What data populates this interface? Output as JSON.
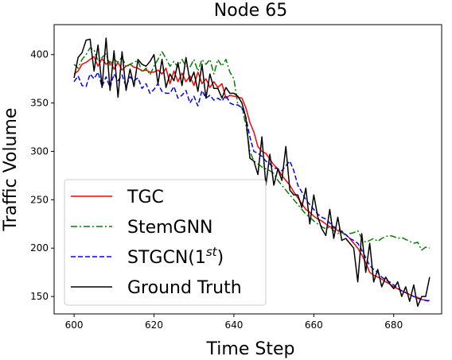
{
  "chart_data": {
    "type": "line",
    "title": "Node 65",
    "xlabel": "Time Step",
    "ylabel": "Traffic Volume",
    "xlim": [
      595,
      692
    ],
    "ylim": [
      132,
      431
    ],
    "xticks": [
      600,
      620,
      640,
      660,
      680
    ],
    "yticks": [
      150,
      200,
      250,
      300,
      350,
      400
    ],
    "legend_position": "lower-left",
    "grid": false,
    "x": [
      600,
      601,
      602,
      603,
      604,
      605,
      606,
      607,
      608,
      609,
      610,
      611,
      612,
      613,
      614,
      615,
      616,
      617,
      618,
      619,
      620,
      621,
      622,
      623,
      624,
      625,
      626,
      627,
      628,
      629,
      630,
      631,
      632,
      633,
      634,
      635,
      636,
      637,
      638,
      639,
      640,
      641,
      642,
      643,
      644,
      645,
      646,
      647,
      648,
      649,
      650,
      651,
      652,
      653,
      654,
      655,
      656,
      657,
      658,
      659,
      660,
      661,
      662,
      663,
      664,
      665,
      666,
      667,
      668,
      669,
      670,
      671,
      672,
      673,
      674,
      675,
      676,
      677,
      678,
      679,
      680,
      681,
      682,
      683,
      684,
      685,
      686,
      687,
      688,
      689
    ],
    "series": [
      {
        "name": "TGC",
        "color": "#ff0000",
        "dash": "solid",
        "values": [
          380,
          383,
          390,
          392,
          395,
          398,
          388,
          396,
          390,
          393,
          385,
          392,
          384,
          388,
          390,
          387,
          386,
          383,
          384,
          382,
          382,
          384,
          380,
          386,
          370,
          383,
          372,
          381,
          372,
          378,
          368,
          382,
          370,
          375,
          366,
          372,
          366,
          370,
          355,
          358,
          357,
          356,
          355,
          345,
          330,
          320,
          305,
          300,
          298,
          292,
          286,
          282,
          275,
          270,
          265,
          258,
          252,
          246,
          240,
          237,
          233,
          230,
          228,
          225,
          222,
          221,
          218,
          216,
          214,
          210,
          205,
          200,
          193,
          185,
          175,
          172,
          170,
          168,
          165,
          163,
          160,
          158,
          156,
          154,
          152,
          150,
          149,
          147,
          146,
          146
        ]
      },
      {
        "name": "StemGNN",
        "color": "#008000",
        "dash": "dashdot",
        "values": [
          390,
          386,
          395,
          400,
          407,
          405,
          393,
          397,
          401,
          389,
          395,
          392,
          398,
          387,
          390,
          392,
          394,
          382,
          386,
          379,
          388,
          395,
          403,
          396,
          388,
          393,
          387,
          395,
          388,
          387,
          395,
          383,
          395,
          390,
          395,
          380,
          395,
          388,
          395,
          382,
          375,
          348,
          345,
          328,
          300,
          290,
          287,
          284,
          282,
          280,
          277,
          270,
          265,
          260,
          255,
          250,
          245,
          240,
          235,
          232,
          228,
          225,
          222,
          220,
          222,
          218,
          215,
          218,
          212,
          215,
          216,
          218,
          210,
          206,
          208,
          210,
          207,
          210,
          212,
          213,
          212,
          210,
          211,
          209,
          207,
          205,
          206,
          198,
          201,
          200
        ]
      },
      {
        "name": "STGCN(1$^{st}$)",
        "color": "#0000ff",
        "dash": "dashed",
        "values": [
          372,
          378,
          368,
          367,
          380,
          375,
          382,
          367,
          377,
          366,
          380,
          373,
          379,
          367,
          377,
          373,
          376,
          365,
          370,
          360,
          364,
          370,
          362,
          360,
          360,
          367,
          355,
          358,
          363,
          350,
          357,
          347,
          363,
          355,
          358,
          353,
          355,
          352,
          358,
          350,
          348,
          348,
          345,
          335,
          315,
          300,
          298,
          295,
          290,
          287,
          283,
          282,
          280,
          285,
          290,
          280,
          265,
          258,
          250,
          245,
          240,
          235,
          232,
          230,
          226,
          222,
          220,
          217,
          214,
          210,
          208,
          205,
          198,
          190,
          182,
          178,
          175,
          170,
          167,
          165,
          162,
          158,
          156,
          154,
          152,
          150,
          148,
          147,
          146,
          145
        ]
      },
      {
        "name": "Ground Truth",
        "color": "#000000",
        "dash": "solid",
        "values": [
          376,
          397,
          402,
          415,
          416,
          383,
          410,
          366,
          417,
          363,
          404,
          356,
          403,
          363,
          385,
          367,
          395,
          390,
          388,
          393,
          400,
          370,
          395,
          366,
          380,
          373,
          392,
          368,
          397,
          372,
          382,
          362,
          390,
          355,
          380,
          365,
          365,
          355,
          366,
          360,
          360,
          357,
          350,
          335,
          293,
          290,
          276,
          315,
          265,
          297,
          265,
          282,
          270,
          305,
          260,
          255,
          255,
          242,
          262,
          225,
          255,
          232,
          220,
          213,
          240,
          210,
          232,
          208,
          210,
          205,
          200,
          165,
          215,
          175,
          205,
          165,
          178,
          160,
          170,
          163,
          158,
          165,
          150,
          160,
          145,
          162,
          140,
          150,
          150,
          170
        ]
      }
    ]
  }
}
